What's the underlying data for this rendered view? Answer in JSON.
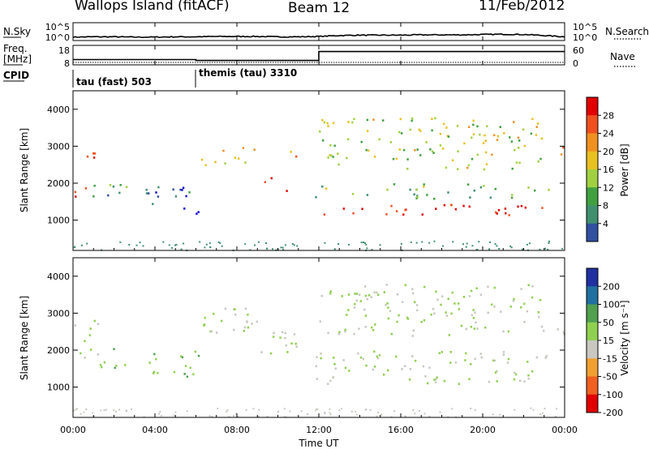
{
  "header": {
    "station": "Wallops Island (fitACF)",
    "beam": "Beam 12",
    "date": "11/Feb/2012"
  },
  "panels": {
    "nsky": {
      "left_label": "N.Sky",
      "right_label": "N.Search",
      "left_ticks": [
        "10^5",
        "10^0"
      ],
      "right_ticks": [
        "10^5",
        "10^0"
      ]
    },
    "freq": {
      "left_label_1": "Freq.",
      "left_label_2": "[MHz]",
      "right_label": "Nave",
      "left_ticks": [
        "18",
        "8"
      ],
      "right_ticks": [
        "60",
        "0"
      ]
    },
    "cpid": {
      "label": "CPID",
      "modes": [
        "tau (fast) 503",
        "themis (tau) 3310"
      ]
    },
    "power": {
      "ylabel": "Slant Range [km]",
      "yticks": [
        "4000",
        "3000",
        "2000",
        "1000"
      ],
      "colorbar_label": "Power [dB]",
      "colorbar_ticks": [
        "28",
        "24",
        "20",
        "16",
        "12",
        "8",
        "4"
      ]
    },
    "velocity": {
      "ylabel": "Slant Range [km]",
      "yticks": [
        "4000",
        "3000",
        "2000",
        "1000"
      ],
      "colorbar_label": "Velocity [m s⁻¹]",
      "colorbar_ticks": [
        "200",
        "100",
        "50",
        "15",
        "-15",
        "-50",
        "-100",
        "-200"
      ]
    },
    "xaxis": {
      "label": "Time UT",
      "ticks": [
        "00:00",
        "04:00",
        "08:00",
        "12:00",
        "16:00",
        "20:00",
        "00:00"
      ]
    }
  },
  "colors": {
    "power_scale": [
      "#e00000",
      "#f05020",
      "#f09020",
      "#e8c020",
      "#a0d040",
      "#40a040",
      "#409070",
      "#3050a0",
      "#1010d0"
    ],
    "velocity_scale": [
      "#2030a0",
      "#2070a0",
      "#50a050",
      "#90d050",
      "#c8c8c0",
      "#f0a030",
      "#f06020",
      "#e00000"
    ]
  },
  "chart_data": [
    {
      "type": "line",
      "title": "N.Sky / N.Search",
      "x": [
        0,
        1,
        2,
        3,
        4,
        5,
        6,
        7,
        8,
        9,
        10,
        11,
        12,
        13,
        14,
        15,
        16,
        17,
        18,
        19,
        20,
        21,
        22,
        23,
        24
      ],
      "series": [
        {
          "name": "N.Sky",
          "values": [
            0.8,
            0.9,
            0.9,
            0.8,
            0.8,
            0.9,
            0.9,
            1.0,
            1.0,
            1.0,
            0.9,
            0.9,
            1.0,
            1.3,
            1.4,
            1.4,
            1.4,
            1.5,
            1.5,
            1.5,
            1.6,
            1.7,
            1.6,
            1.3,
            0.9
          ]
        }
      ],
      "ylim": [
        0,
        5
      ]
    },
    {
      "type": "line",
      "title": "Freq. / Nave",
      "x": [
        0,
        5.6,
        6.0,
        11.9,
        12.0,
        24
      ],
      "series": [
        {
          "name": "Freq. [MHz]",
          "values": [
            10.5,
            10.5,
            10.0,
            10.0,
            15.0,
            15.0
          ]
        }
      ],
      "ylim": [
        8,
        18
      ]
    },
    {
      "type": "heatmap",
      "title": "Power [dB]",
      "xlabel": "Time UT",
      "ylabel": "Slant Range [km]",
      "xlim": [
        0,
        24
      ],
      "ylim": [
        180,
        4500
      ],
      "clim": [
        0,
        30
      ],
      "regions": [
        {
          "t0": 0.0,
          "t1": 0.9,
          "r0": 1500,
          "r1": 2200,
          "p": 26
        },
        {
          "t0": 0.3,
          "t1": 1.2,
          "r0": 2500,
          "r1": 3000,
          "p": 24
        },
        {
          "t0": 0.8,
          "t1": 2.8,
          "r0": 1500,
          "r1": 2000,
          "p": 9
        },
        {
          "t0": 3.5,
          "t1": 6.2,
          "r0": 1200,
          "r1": 2000,
          "p": 6
        },
        {
          "t0": 5.8,
          "t1": 9.0,
          "r0": 2500,
          "r1": 3000,
          "p": 18
        },
        {
          "t0": 9.0,
          "t1": 10.6,
          "r0": 1800,
          "r1": 2200,
          "p": 27
        },
        {
          "t0": 10.4,
          "t1": 11.0,
          "r0": 2600,
          "r1": 3200,
          "p": 22
        },
        {
          "t0": 11.8,
          "t1": 23.2,
          "r0": 1150,
          "r1": 1450,
          "p": 28
        },
        {
          "t0": 11.8,
          "t1": 23.2,
          "r0": 1600,
          "r1": 2000,
          "p": 12
        },
        {
          "t0": 12.0,
          "t1": 23.0,
          "r0": 2400,
          "r1": 3800,
          "p": 16
        },
        {
          "t0": 23.4,
          "t1": 24.0,
          "r0": 2500,
          "r1": 3000,
          "p": 25
        }
      ]
    },
    {
      "type": "heatmap",
      "title": "Velocity [m s⁻¹]",
      "xlabel": "Time UT",
      "ylabel": "Slant Range [km]",
      "xlim": [
        0,
        24
      ],
      "ylim": [
        180,
        4500
      ],
      "clim": [
        -200,
        200
      ],
      "regions": [
        {
          "t0": 0.0,
          "t1": 1.2,
          "r0": 1600,
          "r1": 3000,
          "v": 0
        },
        {
          "t0": 1.0,
          "t1": 2.8,
          "r0": 1500,
          "r1": 2100,
          "v": 40
        },
        {
          "t0": 3.5,
          "t1": 6.2,
          "r0": 1200,
          "r1": 2000,
          "v": 40
        },
        {
          "t0": 5.8,
          "t1": 9.0,
          "r0": 2500,
          "r1": 3300,
          "v": 0
        },
        {
          "t0": 9.0,
          "t1": 11.0,
          "r0": 1800,
          "r1": 2600,
          "v": 0
        },
        {
          "t0": 11.8,
          "t1": 23.2,
          "r0": 1100,
          "r1": 2000,
          "v": 0
        },
        {
          "t0": 12.0,
          "t1": 23.0,
          "r0": 2400,
          "r1": 3800,
          "v": 0
        },
        {
          "t0": 23.4,
          "t1": 24.0,
          "r0": 2400,
          "r1": 3100,
          "v": 0
        }
      ]
    }
  ]
}
